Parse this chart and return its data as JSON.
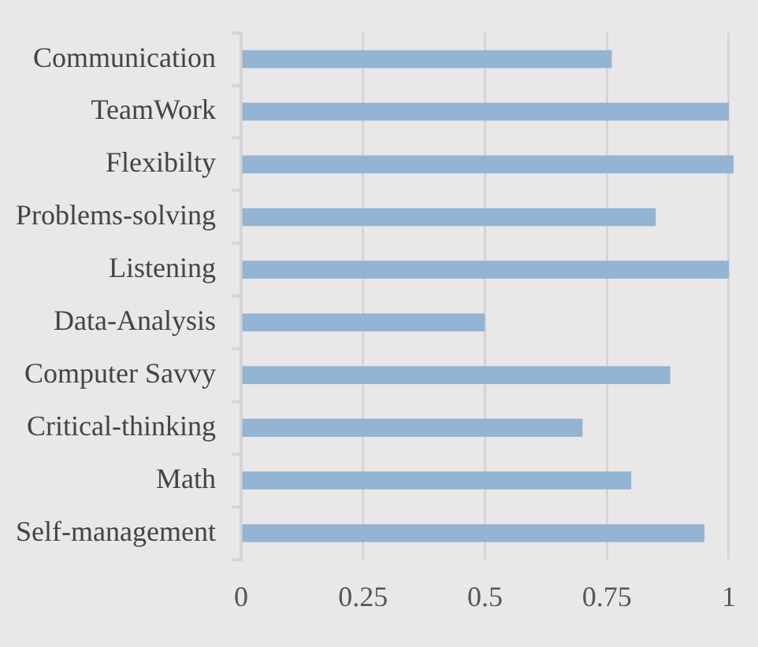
{
  "chart_data": {
    "type": "bar",
    "orientation": "horizontal",
    "categories": [
      "Communication",
      "TeamWork",
      "Flexibilty",
      "Problems-solving",
      "Listening",
      "Data-Analysis",
      "Computer Savvy",
      "Critical-thinking",
      "Math",
      "Self-management"
    ],
    "values": [
      0.76,
      1.0,
      1.01,
      0.85,
      1.0,
      0.5,
      0.88,
      0.7,
      0.8,
      0.95
    ],
    "color": "#93b4d3",
    "xlim": [
      0,
      1.01
    ],
    "xticks": [
      0,
      0.25,
      0.5,
      0.75,
      1
    ],
    "grid": "x",
    "legend": false
  }
}
